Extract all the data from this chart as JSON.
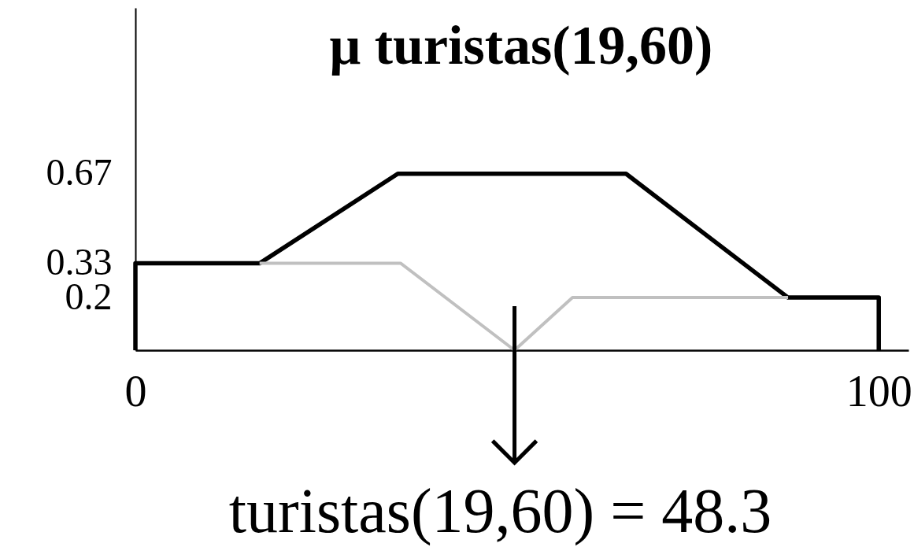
{
  "chart_data": {
    "type": "line",
    "ylabel": "μ turistas(19,60)",
    "xlim": [
      0,
      104
    ],
    "xticks": [
      0,
      100
    ],
    "ylim": [
      0,
      1.3
    ],
    "yticks": [
      0.2,
      0.33,
      0.67
    ],
    "grid": false,
    "line_style": "solid",
    "series": [
      {
        "color": "#000000",
        "x": [
          0,
          0,
          16.7,
          35.3,
          66,
          87.8,
          100,
          100
        ],
        "values": [
          0,
          0.33,
          0.33,
          0.67,
          0.67,
          0.2,
          0.2,
          0
        ]
      },
      {
        "color": "#c0c0c0",
        "x": [
          16.7,
          35.7,
          51,
          58.8,
          87.8
        ],
        "values": [
          0.33,
          0.33,
          0,
          0.2,
          0.2
        ]
      }
    ],
    "annotations": [
      {
        "text": "turistas(19,60) = 48.3",
        "x": 51,
        "y": 0
      }
    ]
  }
}
